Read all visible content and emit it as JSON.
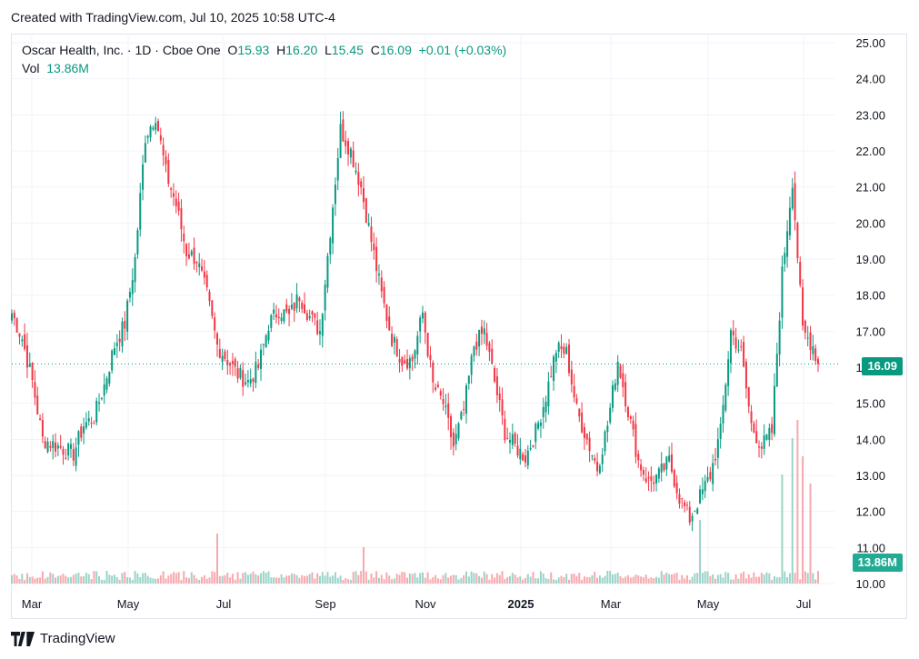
{
  "header": {
    "created": "Created with TradingView.com, Jul 10, 2025 10:58 UTC-4"
  },
  "legend": {
    "symbol": "Oscar Health, Inc. · 1D · Cboe One",
    "o_label": "O",
    "o_value": "15.93",
    "h_label": "H",
    "h_value": "16.20",
    "l_label": "L",
    "l_value": "15.45",
    "c_label": "C",
    "c_value": "16.09",
    "change": "+0.01 (+0.03%)",
    "vol_label": "Vol",
    "vol_value": "13.86M"
  },
  "price_tag": "16.09",
  "volume_tag": "13.86M",
  "footer": {
    "brand": "TradingView"
  },
  "colors": {
    "up": "#089981",
    "down": "#f23645",
    "up_vol": "#9bd3c8",
    "down_vol": "#f7a9ae",
    "grid": "#f0f3fa"
  },
  "chart_data": {
    "type": "candlestick",
    "y_ticks": [
      "25.00",
      "24.00",
      "23.00",
      "22.00",
      "21.00",
      "20.00",
      "19.00",
      "18.00",
      "17.00",
      "16.00",
      "15.00",
      "14.00",
      "13.00",
      "12.00",
      "11.00",
      "10.00"
    ],
    "ylim": [
      10,
      25
    ],
    "x_ticks": [
      "Mar",
      "May",
      "Jul",
      "Sep",
      "Nov",
      "2025",
      "Mar",
      "May",
      "Jul"
    ],
    "anchors": [
      [
        0,
        17.5
      ],
      [
        4,
        16.8
      ],
      [
        8,
        15.6
      ],
      [
        12,
        14.0
      ],
      [
        18,
        13.8
      ],
      [
        24,
        13.6
      ],
      [
        28,
        14.4
      ],
      [
        32,
        14.6
      ],
      [
        36,
        15.5
      ],
      [
        40,
        16.6
      ],
      [
        44,
        17.2
      ],
      [
        48,
        19.0
      ],
      [
        52,
        22.4
      ],
      [
        56,
        23.0
      ],
      [
        60,
        21.4
      ],
      [
        64,
        20.5
      ],
      [
        68,
        19.2
      ],
      [
        72,
        19.0
      ],
      [
        76,
        18.0
      ],
      [
        80,
        16.6
      ],
      [
        84,
        16.2
      ],
      [
        88,
        15.8
      ],
      [
        92,
        15.6
      ],
      [
        96,
        16.0
      ],
      [
        100,
        17.2
      ],
      [
        104,
        17.6
      ],
      [
        108,
        17.4
      ],
      [
        112,
        18.0
      ],
      [
        116,
        17.4
      ],
      [
        120,
        17.0
      ],
      [
        124,
        19.8
      ],
      [
        128,
        22.6
      ],
      [
        132,
        22.0
      ],
      [
        136,
        21.0
      ],
      [
        140,
        19.5
      ],
      [
        144,
        18.0
      ],
      [
        148,
        16.8
      ],
      [
        152,
        16.2
      ],
      [
        156,
        16.2
      ],
      [
        160,
        17.5
      ],
      [
        164,
        15.5
      ],
      [
        168,
        15.0
      ],
      [
        172,
        13.8
      ],
      [
        176,
        14.8
      ],
      [
        180,
        16.6
      ],
      [
        184,
        17.0
      ],
      [
        188,
        15.6
      ],
      [
        192,
        14.2
      ],
      [
        196,
        13.8
      ],
      [
        200,
        13.5
      ],
      [
        204,
        14.2
      ],
      [
        208,
        15.2
      ],
      [
        212,
        16.5
      ],
      [
        216,
        16.4
      ],
      [
        220,
        14.8
      ],
      [
        224,
        14.0
      ],
      [
        228,
        13.2
      ],
      [
        232,
        14.4
      ],
      [
        236,
        16.2
      ],
      [
        240,
        14.8
      ],
      [
        244,
        13.4
      ],
      [
        248,
        12.8
      ],
      [
        252,
        13.0
      ],
      [
        256,
        13.4
      ],
      [
        260,
        12.4
      ],
      [
        264,
        11.8
      ],
      [
        268,
        12.4
      ],
      [
        272,
        13.0
      ],
      [
        276,
        14.2
      ],
      [
        280,
        17.0
      ],
      [
        284,
        16.4
      ],
      [
        288,
        14.4
      ],
      [
        292,
        13.8
      ],
      [
        296,
        14.2
      ],
      [
        300,
        18.6
      ],
      [
        304,
        21.2
      ],
      [
        308,
        17.0
      ],
      [
        312,
        16.6
      ],
      [
        314,
        16.09
      ]
    ],
    "volume": {
      "label": "13.86M",
      "spikes": [
        [
          80,
          0.35
        ],
        [
          137,
          0.2
        ],
        [
          268,
          0.5
        ],
        [
          300,
          1.0
        ],
        [
          304,
          1.4
        ],
        [
          306,
          1.6
        ],
        [
          308,
          1.2
        ],
        [
          311,
          0.9
        ]
      ]
    }
  }
}
